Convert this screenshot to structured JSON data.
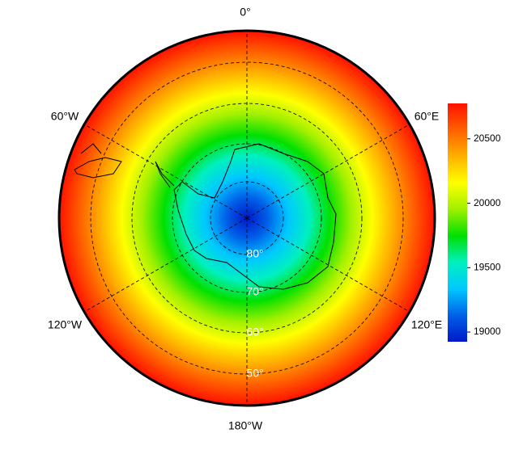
{
  "chart_data": {
    "type": "polar-map",
    "meridian_labels": [
      "0°",
      "60°E",
      "120°E",
      "180°W",
      "120°W",
      "60°W"
    ],
    "parallel_labels": [
      "80°",
      "70°",
      "60°",
      "50°"
    ],
    "colormap": [
      "#0018c8",
      "#0060e8",
      "#00c8ff",
      "#00f0c0",
      "#00e000",
      "#a0f000",
      "#ffff00",
      "#ffb000",
      "#ff6000",
      "#ff1000"
    ],
    "colorbar": {
      "lim": [
        18925,
        20775
      ],
      "ticks": [
        19000,
        19500,
        20000,
        20500
      ]
    }
  }
}
